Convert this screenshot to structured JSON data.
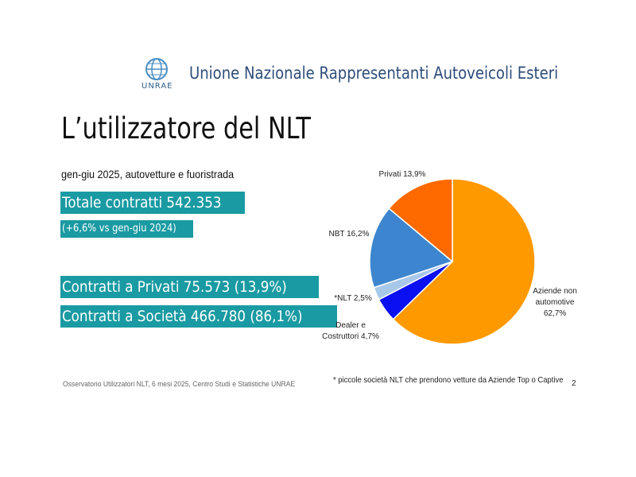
{
  "header": {
    "logo_text": "UNRAE",
    "org_name": "Unione Nazionale Rappresentanti Autoveicoli Esteri"
  },
  "title": "L’utilizzatore del NLT",
  "subtitle": "gen-giu 2025, autovetture e fuoristrada",
  "highlights": {
    "total": "Totale contratti 542.353",
    "variation": "(+6,6% vs  gen-giu 2024)",
    "private": "Contratti a Privati  75.573 (13,9%)",
    "companies": "Contratti a Società 466.780 (86,1%)"
  },
  "source": "Osservatorio Utilizzatori NLT, 6 mesi 2025, Centro Studi e Statistiche UNRAE",
  "footnote": "* piccole società NLT che prendono vetture da Aziende Top o Captive",
  "page_number": "2",
  "icons": {
    "logo": "globe-logo-icon"
  },
  "chart_data": {
    "type": "pie",
    "unit": "%",
    "slices": [
      {
        "label_lines": [
          "Aziende non",
          "automotive",
          "62,7%"
        ],
        "value": 62.7,
        "color": "#ff9900"
      },
      {
        "label_lines": [
          "Dealer e",
          "Costruttori 4,7%"
        ],
        "value": 4.7,
        "color": "#0a10f2"
      },
      {
        "label_lines": [
          "*NLT 2,5%"
        ],
        "value": 2.5,
        "color": "#a8c8ea"
      },
      {
        "label_lines": [
          "NBT 16,2%"
        ],
        "value": 16.2,
        "color": "#3d86cf"
      },
      {
        "label_lines": [
          "Privati 13,9%"
        ],
        "value": 13.9,
        "color": "#ff6a00"
      }
    ]
  }
}
